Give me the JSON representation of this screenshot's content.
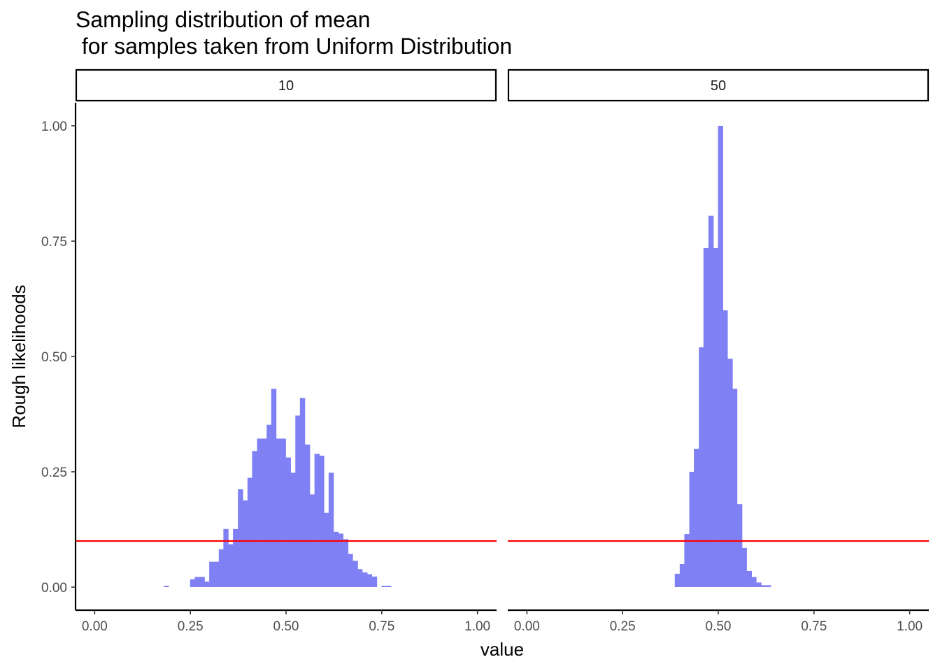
{
  "chart_data": {
    "type": "bar",
    "title_line1": "Sampling distribution of mean",
    "title_line2": " for samples taken from Uniform Distribution",
    "xlabel": "value",
    "ylabel": "Rough likelihoods",
    "xlim": [
      -0.05,
      1.05
    ],
    "ylim": [
      -0.05,
      1.05
    ],
    "x_ticks": [
      "0.00",
      "0.25",
      "0.50",
      "0.75",
      "1.00"
    ],
    "y_ticks": [
      "0.00",
      "0.25",
      "0.50",
      "0.75",
      "1.00"
    ],
    "grid": false,
    "bar_color": "#8080f5",
    "hline": {
      "y": 0.1,
      "color": "#ff0000"
    },
    "panels": [
      {
        "strip_label": "10",
        "x": [
          0.187,
          0.256,
          0.268,
          0.281,
          0.293,
          0.306,
          0.318,
          0.331,
          0.343,
          0.356,
          0.368,
          0.381,
          0.393,
          0.406,
          0.418,
          0.431,
          0.443,
          0.456,
          0.468,
          0.481,
          0.493,
          0.506,
          0.518,
          0.531,
          0.543,
          0.556,
          0.568,
          0.581,
          0.593,
          0.606,
          0.618,
          0.631,
          0.643,
          0.656,
          0.668,
          0.681,
          0.693,
          0.706,
          0.718,
          0.731,
          0.756,
          0.768
        ],
        "values": [
          0.003,
          0.017,
          0.022,
          0.022,
          0.012,
          0.055,
          0.055,
          0.082,
          0.126,
          0.093,
          0.126,
          0.212,
          0.188,
          0.237,
          0.295,
          0.322,
          0.322,
          0.352,
          0.43,
          0.322,
          0.322,
          0.281,
          0.248,
          0.372,
          0.41,
          0.309,
          0.201,
          0.289,
          0.285,
          0.161,
          0.248,
          0.12,
          0.116,
          0.104,
          0.072,
          0.057,
          0.039,
          0.032,
          0.028,
          0.023,
          0.003,
          0.003
        ]
      },
      {
        "strip_label": "50",
        "x": [
          0.393,
          0.406,
          0.418,
          0.431,
          0.443,
          0.456,
          0.468,
          0.481,
          0.493,
          0.506,
          0.518,
          0.531,
          0.543,
          0.556,
          0.568,
          0.581,
          0.593,
          0.606,
          0.618,
          0.631
        ],
        "values": [
          0.029,
          0.05,
          0.115,
          0.25,
          0.3,
          0.52,
          0.735,
          0.805,
          0.735,
          1.0,
          0.6,
          0.495,
          0.43,
          0.18,
          0.085,
          0.035,
          0.022,
          0.01,
          0.004,
          0.004
        ]
      }
    ]
  }
}
